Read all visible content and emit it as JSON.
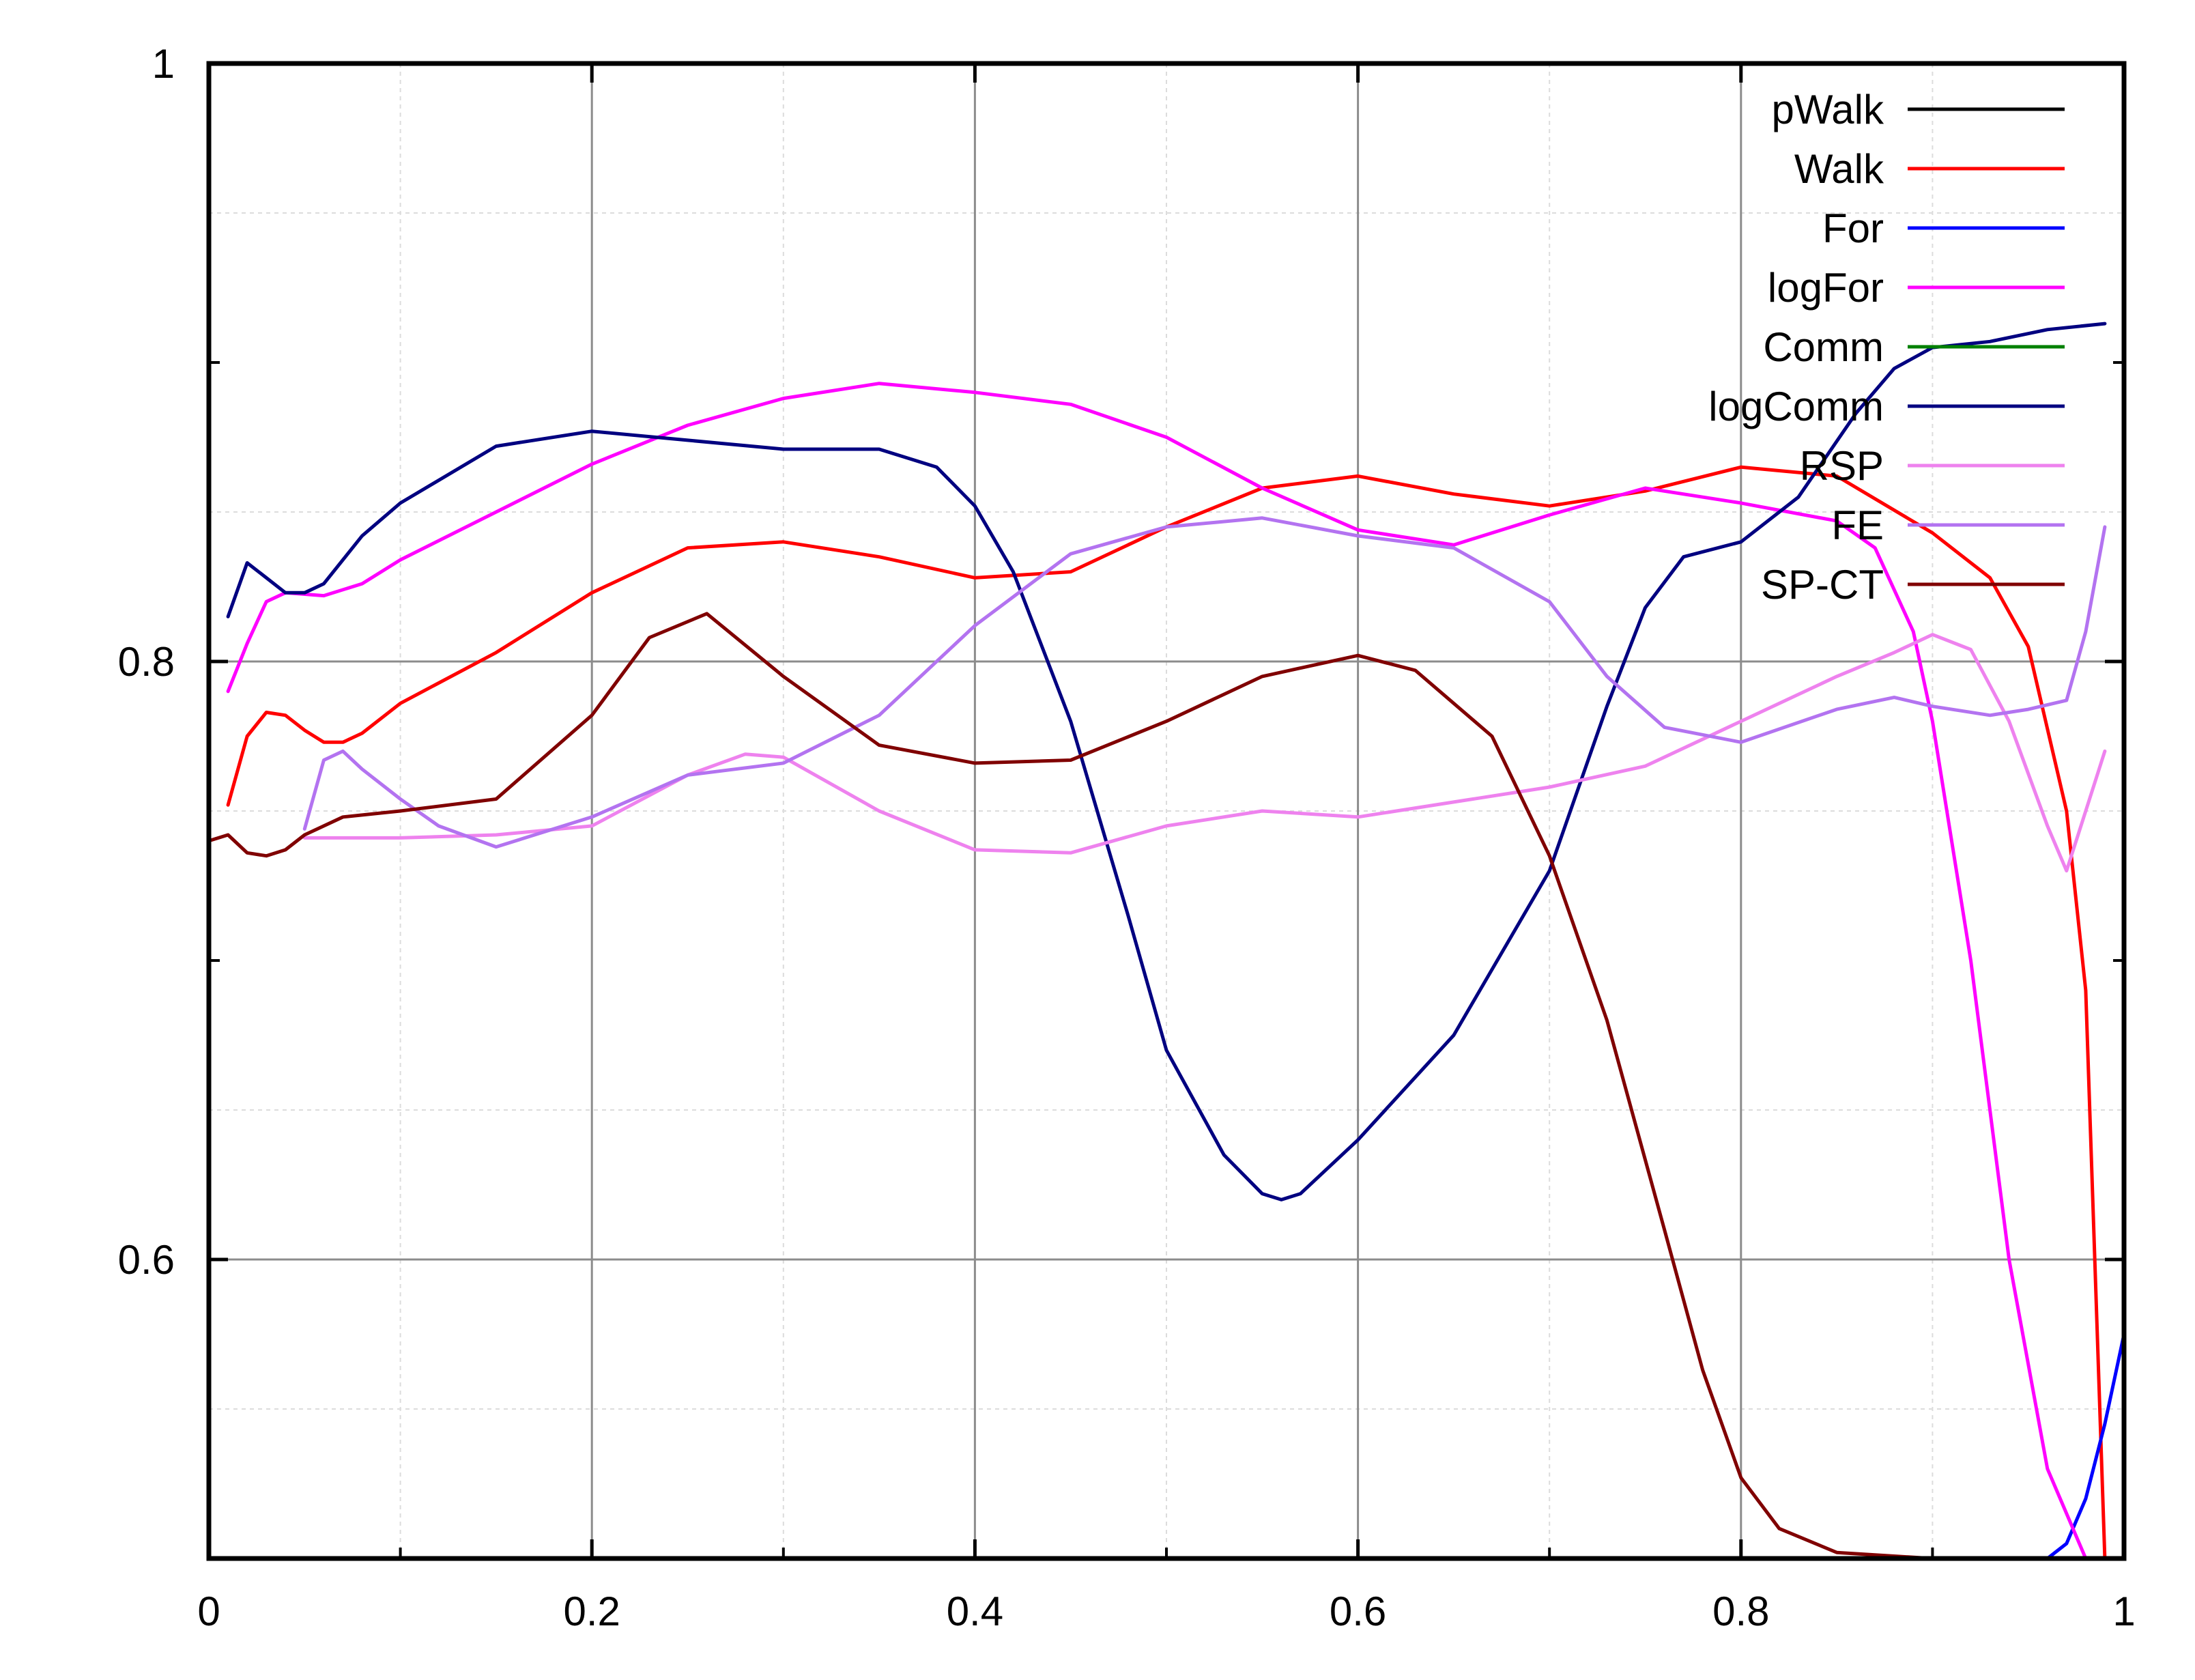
{
  "chart_data": {
    "type": "line",
    "title": "",
    "xlabel": "",
    "ylabel": "",
    "xlim": [
      0,
      1
    ],
    "ylim": [
      0.5,
      1
    ],
    "grid": true,
    "legend_position": "top-right",
    "x_ticks": [
      {
        "value": 0,
        "label": "0"
      },
      {
        "value": 0.2,
        "label": "0.2"
      },
      {
        "value": 0.4,
        "label": "0.4"
      },
      {
        "value": 0.6,
        "label": "0.6"
      },
      {
        "value": 0.8,
        "label": "0.8"
      },
      {
        "value": 1,
        "label": "1"
      }
    ],
    "y_ticks": [
      {
        "value": 0.6,
        "label": "0.6"
      },
      {
        "value": 0.8,
        "label": "0.8"
      },
      {
        "value": 1,
        "label": "1"
      }
    ],
    "series": [
      {
        "name": "pWalk",
        "color": "#000000",
        "points": [
          [
            0,
            0.5
          ],
          [
            0.1,
            0.5
          ],
          [
            0.2,
            0.5
          ],
          [
            0.3,
            0.5
          ],
          [
            0.4,
            0.5
          ],
          [
            0.5,
            0.5
          ],
          [
            0.6,
            0.5
          ],
          [
            0.7,
            0.5
          ],
          [
            0.8,
            0.5
          ],
          [
            0.9,
            0.5
          ],
          [
            1,
            0.5
          ]
        ]
      },
      {
        "name": "Walk",
        "color": "#ff0000",
        "points": [
          [
            0.01,
            0.752
          ],
          [
            0.02,
            0.775
          ],
          [
            0.03,
            0.783
          ],
          [
            0.04,
            0.782
          ],
          [
            0.05,
            0.777
          ],
          [
            0.06,
            0.773
          ],
          [
            0.07,
            0.773
          ],
          [
            0.08,
            0.776
          ],
          [
            0.1,
            0.786
          ],
          [
            0.15,
            0.803
          ],
          [
            0.2,
            0.823
          ],
          [
            0.25,
            0.838
          ],
          [
            0.3,
            0.84
          ],
          [
            0.35,
            0.835
          ],
          [
            0.4,
            0.828
          ],
          [
            0.45,
            0.83
          ],
          [
            0.5,
            0.845
          ],
          [
            0.55,
            0.858
          ],
          [
            0.6,
            0.862
          ],
          [
            0.65,
            0.856
          ],
          [
            0.7,
            0.852
          ],
          [
            0.75,
            0.857
          ],
          [
            0.8,
            0.865
          ],
          [
            0.85,
            0.862
          ],
          [
            0.9,
            0.843
          ],
          [
            0.93,
            0.828
          ],
          [
            0.95,
            0.805
          ],
          [
            0.97,
            0.75
          ],
          [
            0.98,
            0.69
          ],
          [
            0.99,
            0.5
          ]
        ]
      },
      {
        "name": "For",
        "color": "#0000ff",
        "points": [
          [
            0,
            0.5
          ],
          [
            0.5,
            0.5
          ],
          [
            0.94,
            0.5
          ],
          [
            0.96,
            0.5
          ],
          [
            0.97,
            0.505
          ],
          [
            0.98,
            0.52
          ],
          [
            0.99,
            0.545
          ],
          [
            1,
            0.575
          ]
        ]
      },
      {
        "name": "logFor",
        "color": "#ff00ff",
        "points": [
          [
            0.01,
            0.79
          ],
          [
            0.02,
            0.806
          ],
          [
            0.03,
            0.82
          ],
          [
            0.04,
            0.823
          ],
          [
            0.06,
            0.822
          ],
          [
            0.08,
            0.826
          ],
          [
            0.1,
            0.834
          ],
          [
            0.15,
            0.85
          ],
          [
            0.2,
            0.866
          ],
          [
            0.25,
            0.879
          ],
          [
            0.3,
            0.888
          ],
          [
            0.35,
            0.893
          ],
          [
            0.4,
            0.89
          ],
          [
            0.45,
            0.886
          ],
          [
            0.5,
            0.875
          ],
          [
            0.55,
            0.858
          ],
          [
            0.6,
            0.844
          ],
          [
            0.65,
            0.839
          ],
          [
            0.7,
            0.849
          ],
          [
            0.75,
            0.858
          ],
          [
            0.8,
            0.853
          ],
          [
            0.85,
            0.847
          ],
          [
            0.87,
            0.838
          ],
          [
            0.89,
            0.81
          ],
          [
            0.9,
            0.78
          ],
          [
            0.92,
            0.7
          ],
          [
            0.94,
            0.6
          ],
          [
            0.96,
            0.53
          ],
          [
            0.98,
            0.5
          ]
        ]
      },
      {
        "name": "Comm",
        "color": "#008000",
        "points": [
          [
            0,
            0.5
          ],
          [
            0.1,
            0.5
          ],
          [
            0.2,
            0.5
          ],
          [
            0.3,
            0.5
          ],
          [
            0.4,
            0.5
          ],
          [
            0.5,
            0.5
          ],
          [
            0.6,
            0.5
          ],
          [
            0.7,
            0.5
          ],
          [
            0.8,
            0.5
          ],
          [
            0.9,
            0.5
          ],
          [
            1,
            0.5
          ]
        ]
      },
      {
        "name": "logComm",
        "color": "#000080",
        "points": [
          [
            0.01,
            0.815
          ],
          [
            0.02,
            0.833
          ],
          [
            0.03,
            0.828
          ],
          [
            0.04,
            0.823
          ],
          [
            0.05,
            0.823
          ],
          [
            0.06,
            0.826
          ],
          [
            0.08,
            0.842
          ],
          [
            0.1,
            0.853
          ],
          [
            0.15,
            0.872
          ],
          [
            0.2,
            0.877
          ],
          [
            0.25,
            0.874
          ],
          [
            0.3,
            0.871
          ],
          [
            0.35,
            0.871
          ],
          [
            0.38,
            0.865
          ],
          [
            0.4,
            0.852
          ],
          [
            0.42,
            0.83
          ],
          [
            0.45,
            0.78
          ],
          [
            0.48,
            0.715
          ],
          [
            0.5,
            0.67
          ],
          [
            0.53,
            0.635
          ],
          [
            0.55,
            0.622
          ],
          [
            0.56,
            0.62
          ],
          [
            0.57,
            0.622
          ],
          [
            0.6,
            0.64
          ],
          [
            0.65,
            0.675
          ],
          [
            0.7,
            0.73
          ],
          [
            0.73,
            0.785
          ],
          [
            0.75,
            0.818
          ],
          [
            0.77,
            0.835
          ],
          [
            0.8,
            0.84
          ],
          [
            0.83,
            0.855
          ],
          [
            0.86,
            0.883
          ],
          [
            0.88,
            0.898
          ],
          [
            0.9,
            0.905
          ],
          [
            0.93,
            0.907
          ],
          [
            0.96,
            0.911
          ],
          [
            0.99,
            0.913
          ]
        ]
      },
      {
        "name": "RSP",
        "color": "#ee82ee",
        "points": [
          [
            0.05,
            0.741
          ],
          [
            0.07,
            0.741
          ],
          [
            0.1,
            0.741
          ],
          [
            0.15,
            0.742
          ],
          [
            0.2,
            0.745
          ],
          [
            0.25,
            0.762
          ],
          [
            0.28,
            0.769
          ],
          [
            0.3,
            0.768
          ],
          [
            0.35,
            0.75
          ],
          [
            0.4,
            0.737
          ],
          [
            0.45,
            0.736
          ],
          [
            0.5,
            0.745
          ],
          [
            0.55,
            0.75
          ],
          [
            0.6,
            0.748
          ],
          [
            0.65,
            0.753
          ],
          [
            0.7,
            0.758
          ],
          [
            0.75,
            0.765
          ],
          [
            0.8,
            0.78
          ],
          [
            0.85,
            0.795
          ],
          [
            0.88,
            0.803
          ],
          [
            0.9,
            0.809
          ],
          [
            0.92,
            0.804
          ],
          [
            0.94,
            0.78
          ],
          [
            0.96,
            0.745
          ],
          [
            0.97,
            0.73
          ],
          [
            0.98,
            0.75
          ],
          [
            0.99,
            0.77
          ]
        ]
      },
      {
        "name": "FE",
        "color": "#b373f0",
        "points": [
          [
            0.05,
            0.744
          ],
          [
            0.06,
            0.767
          ],
          [
            0.07,
            0.77
          ],
          [
            0.08,
            0.764
          ],
          [
            0.1,
            0.754
          ],
          [
            0.12,
            0.745
          ],
          [
            0.15,
            0.738
          ],
          [
            0.2,
            0.748
          ],
          [
            0.25,
            0.762
          ],
          [
            0.3,
            0.766
          ],
          [
            0.35,
            0.782
          ],
          [
            0.4,
            0.812
          ],
          [
            0.45,
            0.836
          ],
          [
            0.5,
            0.845
          ],
          [
            0.55,
            0.848
          ],
          [
            0.6,
            0.842
          ],
          [
            0.65,
            0.838
          ],
          [
            0.7,
            0.82
          ],
          [
            0.73,
            0.795
          ],
          [
            0.76,
            0.778
          ],
          [
            0.8,
            0.773
          ],
          [
            0.85,
            0.784
          ],
          [
            0.88,
            0.788
          ],
          [
            0.9,
            0.785
          ],
          [
            0.93,
            0.782
          ],
          [
            0.95,
            0.784
          ],
          [
            0.97,
            0.787
          ],
          [
            0.98,
            0.81
          ],
          [
            0.99,
            0.845
          ]
        ]
      },
      {
        "name": "SP-CT",
        "color": "#800000",
        "points": [
          [
            0,
            0.74
          ],
          [
            0.01,
            0.742
          ],
          [
            0.02,
            0.736
          ],
          [
            0.03,
            0.735
          ],
          [
            0.04,
            0.737
          ],
          [
            0.05,
            0.742
          ],
          [
            0.07,
            0.748
          ],
          [
            0.1,
            0.75
          ],
          [
            0.15,
            0.754
          ],
          [
            0.2,
            0.782
          ],
          [
            0.23,
            0.808
          ],
          [
            0.26,
            0.816
          ],
          [
            0.3,
            0.795
          ],
          [
            0.35,
            0.772
          ],
          [
            0.4,
            0.766
          ],
          [
            0.45,
            0.767
          ],
          [
            0.5,
            0.78
          ],
          [
            0.55,
            0.795
          ],
          [
            0.6,
            0.802
          ],
          [
            0.63,
            0.797
          ],
          [
            0.67,
            0.775
          ],
          [
            0.7,
            0.735
          ],
          [
            0.73,
            0.68
          ],
          [
            0.76,
            0.61
          ],
          [
            0.78,
            0.563
          ],
          [
            0.8,
            0.527
          ],
          [
            0.82,
            0.51
          ],
          [
            0.85,
            0.502
          ],
          [
            0.9,
            0.5
          ],
          [
            1,
            0.5
          ]
        ]
      }
    ]
  }
}
